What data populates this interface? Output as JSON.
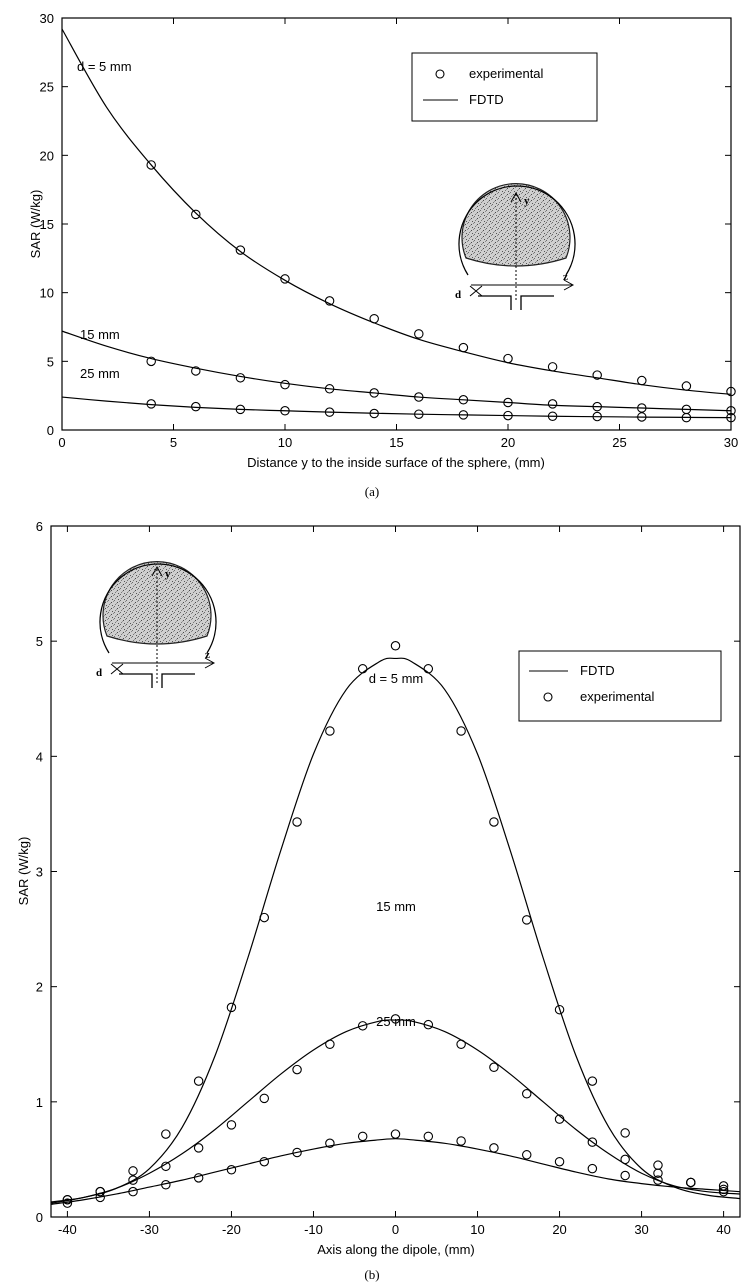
{
  "chart_data": [
    {
      "type": "line",
      "caption": "(a)",
      "xlabel": "Distance y to the inside surface of the sphere, (mm)",
      "ylabel": "SAR (W/kg)",
      "xlim": [
        0,
        30
      ],
      "ylim": [
        0,
        30
      ],
      "xticks": [
        0,
        5,
        10,
        15,
        20,
        25,
        30
      ],
      "yticks": [
        0,
        5,
        10,
        15,
        20,
        25,
        30
      ],
      "grid": false,
      "legend": {
        "placement": "top-right",
        "entries": [
          "experimental",
          "FDTD"
        ]
      },
      "annotations": [
        "d = 5 mm",
        "15 mm",
        "25 mm"
      ],
      "inset_labels": [
        "y",
        "z",
        "d"
      ],
      "series": [
        {
          "kind": "curve",
          "label": "d = 5 mm",
          "x": [
            0,
            2,
            4,
            6,
            8,
            10,
            12,
            14,
            16,
            18,
            20,
            22,
            24,
            26,
            28,
            30
          ],
          "y": [
            29.2,
            23.5,
            19.3,
            15.8,
            13.0,
            10.9,
            9.2,
            7.8,
            6.6,
            5.7,
            4.9,
            4.3,
            3.8,
            3.3,
            2.9,
            2.6
          ]
        },
        {
          "kind": "points",
          "label": "d = 5 mm",
          "x": [
            4,
            6,
            8,
            10,
            12,
            14,
            16,
            18,
            20,
            22,
            24,
            26,
            28,
            30
          ],
          "y": [
            19.3,
            15.7,
            13.1,
            11.0,
            9.4,
            8.1,
            7.0,
            6.0,
            5.2,
            4.6,
            4.0,
            3.6,
            3.2,
            2.8
          ]
        },
        {
          "kind": "curve",
          "label": "15 mm",
          "x": [
            0,
            2,
            4,
            6,
            8,
            10,
            12,
            14,
            16,
            18,
            20,
            22,
            24,
            26,
            28,
            30
          ],
          "y": [
            7.2,
            6.1,
            5.2,
            4.5,
            3.9,
            3.4,
            3.0,
            2.7,
            2.4,
            2.2,
            2.0,
            1.8,
            1.7,
            1.6,
            1.5,
            1.4
          ]
        },
        {
          "kind": "points",
          "label": "15 mm",
          "x": [
            4,
            6,
            8,
            10,
            12,
            14,
            16,
            18,
            20,
            22,
            24,
            26,
            28,
            30
          ],
          "y": [
            5.0,
            4.3,
            3.8,
            3.3,
            3.0,
            2.7,
            2.4,
            2.2,
            2.0,
            1.9,
            1.7,
            1.6,
            1.5,
            1.4
          ]
        },
        {
          "kind": "curve",
          "label": "25 mm",
          "x": [
            0,
            2,
            4,
            6,
            8,
            10,
            12,
            14,
            16,
            18,
            20,
            22,
            24,
            26,
            28,
            30
          ],
          "y": [
            2.4,
            2.1,
            1.85,
            1.65,
            1.5,
            1.4,
            1.3,
            1.22,
            1.15,
            1.1,
            1.05,
            1.0,
            0.97,
            0.94,
            0.92,
            0.9
          ]
        },
        {
          "kind": "points",
          "label": "25 mm",
          "x": [
            4,
            6,
            8,
            10,
            12,
            14,
            16,
            18,
            20,
            22,
            24,
            26,
            28,
            30
          ],
          "y": [
            1.9,
            1.7,
            1.5,
            1.4,
            1.3,
            1.2,
            1.15,
            1.1,
            1.05,
            1.0,
            0.98,
            0.95,
            0.9,
            0.9
          ]
        }
      ]
    },
    {
      "type": "line",
      "caption": "(b)",
      "xlabel": "Axis along the dipole, (mm)",
      "ylabel": "SAR (W/kg)",
      "xlim": [
        -42,
        42
      ],
      "ylim": [
        0,
        6
      ],
      "xticks": [
        -40,
        -30,
        -20,
        -10,
        0,
        10,
        20,
        30,
        40
      ],
      "yticks": [
        0,
        1,
        2,
        3,
        4,
        5,
        6
      ],
      "grid": false,
      "legend": {
        "placement": "top-right",
        "entries": [
          "FDTD",
          "experimental"
        ]
      },
      "annotations": [
        "d = 5 mm",
        "15 mm",
        "25 mm"
      ],
      "inset_labels": [
        "y",
        "z",
        "d"
      ],
      "series": [
        {
          "kind": "curve",
          "label": "d = 5 mm",
          "x": [
            -42,
            -38,
            -34,
            -30,
            -26,
            -22,
            -18,
            -14,
            -10,
            -6,
            -2,
            0,
            2,
            6,
            10,
            14,
            18,
            22,
            26,
            30,
            34,
            38,
            42
          ],
          "y": [
            0.13,
            0.17,
            0.25,
            0.42,
            0.78,
            1.4,
            2.25,
            3.18,
            4.02,
            4.58,
            4.82,
            4.85,
            4.82,
            4.58,
            4.02,
            3.18,
            2.25,
            1.4,
            0.78,
            0.42,
            0.26,
            0.19,
            0.16
          ]
        },
        {
          "kind": "points",
          "label": "d = 5 mm",
          "x": [
            -40,
            -36,
            -32,
            -28,
            -24,
            -20,
            -16,
            -12,
            -8,
            -4,
            0,
            4,
            8,
            12,
            16,
            20,
            24,
            28,
            32,
            36,
            40
          ],
          "y": [
            0.15,
            0.22,
            0.4,
            0.72,
            1.18,
            1.82,
            2.6,
            3.43,
            4.22,
            4.76,
            4.96,
            4.76,
            4.22,
            3.43,
            2.58,
            1.8,
            1.18,
            0.73,
            0.45,
            0.3,
            0.22
          ]
        },
        {
          "kind": "curve",
          "label": "15 mm",
          "x": [
            -42,
            -38,
            -34,
            -30,
            -26,
            -22,
            -18,
            -14,
            -10,
            -6,
            -2,
            0,
            2,
            6,
            10,
            14,
            18,
            22,
            26,
            30,
            34,
            38,
            42
          ],
          "y": [
            0.12,
            0.17,
            0.25,
            0.38,
            0.55,
            0.76,
            1.0,
            1.24,
            1.45,
            1.61,
            1.7,
            1.71,
            1.7,
            1.61,
            1.45,
            1.24,
            1.0,
            0.76,
            0.55,
            0.38,
            0.27,
            0.22,
            0.2
          ]
        },
        {
          "kind": "points",
          "label": "15 mm",
          "x": [
            -40,
            -36,
            -32,
            -28,
            -24,
            -20,
            -16,
            -12,
            -8,
            -4,
            0,
            4,
            8,
            12,
            16,
            20,
            24,
            28,
            32,
            36,
            40
          ],
          "y": [
            0.15,
            0.22,
            0.32,
            0.44,
            0.6,
            0.8,
            1.03,
            1.28,
            1.5,
            1.66,
            1.72,
            1.67,
            1.5,
            1.3,
            1.07,
            0.85,
            0.65,
            0.5,
            0.38,
            0.3,
            0.24
          ]
        },
        {
          "kind": "curve",
          "label": "25 mm",
          "x": [
            -42,
            -38,
            -34,
            -30,
            -26,
            -22,
            -18,
            -14,
            -10,
            -6,
            -2,
            0,
            2,
            6,
            10,
            14,
            18,
            22,
            26,
            30,
            34,
            38,
            42
          ],
          "y": [
            0.11,
            0.15,
            0.2,
            0.26,
            0.32,
            0.39,
            0.46,
            0.53,
            0.59,
            0.64,
            0.67,
            0.68,
            0.67,
            0.64,
            0.59,
            0.53,
            0.46,
            0.39,
            0.33,
            0.29,
            0.26,
            0.24,
            0.22
          ]
        },
        {
          "kind": "points",
          "label": "25 mm",
          "x": [
            -40,
            -36,
            -32,
            -28,
            -24,
            -20,
            -16,
            -12,
            -8,
            -4,
            0,
            4,
            8,
            12,
            16,
            20,
            24,
            28,
            32,
            36,
            40
          ],
          "y": [
            0.12,
            0.17,
            0.22,
            0.28,
            0.34,
            0.41,
            0.48,
            0.56,
            0.64,
            0.7,
            0.72,
            0.7,
            0.66,
            0.6,
            0.54,
            0.48,
            0.42,
            0.36,
            0.32,
            0.3,
            0.27
          ]
        }
      ]
    }
  ]
}
